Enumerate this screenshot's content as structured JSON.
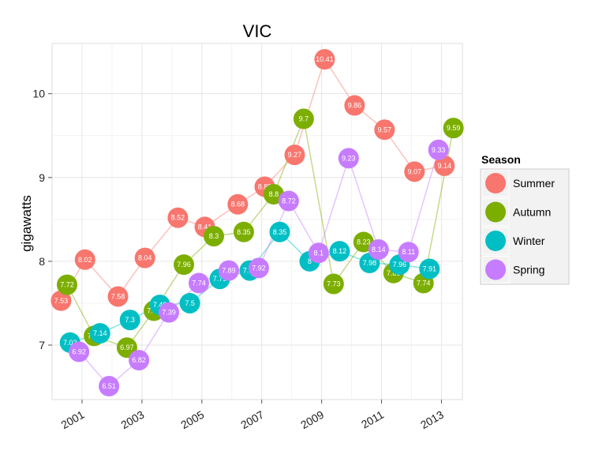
{
  "chart_data": {
    "type": "scatter",
    "title": "VIC",
    "xlabel": "",
    "ylabel": "gigawatts",
    "x_ticks": [
      "2001",
      "2003",
      "2005",
      "2007",
      "2009",
      "2011",
      "2013"
    ],
    "y_ticks": [
      "7",
      "8",
      "9",
      "10"
    ],
    "xlim": [
      2000.0,
      2013.7
    ],
    "ylim": [
      6.35,
      10.6
    ],
    "grid": true,
    "legend": {
      "title": "Season",
      "placement": "right"
    },
    "series": [
      {
        "name": "Summer",
        "color": "#F8766D",
        "points": [
          {
            "x": 2000.3,
            "y": 7.53,
            "label": "7.53"
          },
          {
            "x": 2001.1,
            "y": 8.02,
            "label": "8.02"
          },
          {
            "x": 2002.2,
            "y": 7.58,
            "label": "7.58"
          },
          {
            "x": 2003.1,
            "y": 8.04,
            "label": "8.04"
          },
          {
            "x": 2004.2,
            "y": 8.52,
            "label": "8.52"
          },
          {
            "x": 2005.1,
            "y": 8.41,
            "label": "8.41"
          },
          {
            "x": 2006.2,
            "y": 8.68,
            "label": "8.68"
          },
          {
            "x": 2007.1,
            "y": 8.89,
            "label": "8.89"
          },
          {
            "x": 2008.1,
            "y": 9.27,
            "label": "9.27"
          },
          {
            "x": 2009.1,
            "y": 10.41,
            "label": "10.41"
          },
          {
            "x": 2010.1,
            "y": 9.86,
            "label": "9.86"
          },
          {
            "x": 2011.1,
            "y": 9.57,
            "label": "9.57"
          },
          {
            "x": 2012.1,
            "y": 9.07,
            "label": "9.07"
          },
          {
            "x": 2013.1,
            "y": 9.14,
            "label": "9.14"
          }
        ]
      },
      {
        "name": "Autumn",
        "color": "#7CAE00",
        "points": [
          {
            "x": 2000.5,
            "y": 7.72,
            "label": "7.72"
          },
          {
            "x": 2001.4,
            "y": 7.11,
            "label": "7.11"
          },
          {
            "x": 2002.5,
            "y": 6.97,
            "label": "6.97"
          },
          {
            "x": 2003.4,
            "y": 7.41,
            "label": "7.41"
          },
          {
            "x": 2004.4,
            "y": 7.96,
            "label": "7.96"
          },
          {
            "x": 2005.4,
            "y": 8.3,
            "label": "8.3"
          },
          {
            "x": 2006.4,
            "y": 8.35,
            "label": "8.35"
          },
          {
            "x": 2007.4,
            "y": 8.8,
            "label": "8.8"
          },
          {
            "x": 2008.4,
            "y": 9.7,
            "label": "9.7"
          },
          {
            "x": 2009.4,
            "y": 7.73,
            "label": "7.73"
          },
          {
            "x": 2010.4,
            "y": 8.23,
            "label": "8.23"
          },
          {
            "x": 2011.4,
            "y": 7.86,
            "label": "7.86"
          },
          {
            "x": 2012.4,
            "y": 7.74,
            "label": "7.74"
          },
          {
            "x": 2013.4,
            "y": 9.59,
            "label": "9.59"
          }
        ]
      },
      {
        "name": "Winter",
        "color": "#00BFC4",
        "points": [
          {
            "x": 2000.6,
            "y": 7.03,
            "label": "7.03"
          },
          {
            "x": 2001.6,
            "y": 7.14,
            "label": "7.14"
          },
          {
            "x": 2002.6,
            "y": 7.3,
            "label": "7.3"
          },
          {
            "x": 2003.6,
            "y": 7.48,
            "label": "7.48"
          },
          {
            "x": 2004.6,
            "y": 7.5,
            "label": "7.5"
          },
          {
            "x": 2005.6,
            "y": 7.79,
            "label": "7.79"
          },
          {
            "x": 2006.6,
            "y": 7.89,
            "label": "7.89"
          },
          {
            "x": 2007.6,
            "y": 8.35,
            "label": "8.35"
          },
          {
            "x": 2008.6,
            "y": 8.0,
            "label": "8"
          },
          {
            "x": 2009.6,
            "y": 8.12,
            "label": "8.12"
          },
          {
            "x": 2010.6,
            "y": 7.98,
            "label": "7.98"
          },
          {
            "x": 2011.6,
            "y": 7.96,
            "label": "7.96"
          },
          {
            "x": 2012.6,
            "y": 7.91,
            "label": "7.91"
          }
        ]
      },
      {
        "name": "Spring",
        "color": "#C77CFF",
        "points": [
          {
            "x": 2000.9,
            "y": 6.92,
            "label": "6.92"
          },
          {
            "x": 2001.9,
            "y": 6.51,
            "label": "6.51"
          },
          {
            "x": 2002.9,
            "y": 6.82,
            "label": "6.82"
          },
          {
            "x": 2003.9,
            "y": 7.39,
            "label": "7.39"
          },
          {
            "x": 2004.9,
            "y": 7.74,
            "label": "7.74"
          },
          {
            "x": 2005.9,
            "y": 7.89,
            "label": "7.89"
          },
          {
            "x": 2006.9,
            "y": 7.92,
            "label": "7.92"
          },
          {
            "x": 2007.9,
            "y": 8.72,
            "label": "8.72"
          },
          {
            "x": 2008.9,
            "y": 8.1,
            "label": "8.1"
          },
          {
            "x": 2009.9,
            "y": 9.23,
            "label": "9.23"
          },
          {
            "x": 2010.9,
            "y": 8.14,
            "label": "8.14"
          },
          {
            "x": 2011.9,
            "y": 8.11,
            "label": "8.11"
          },
          {
            "x": 2012.9,
            "y": 9.33,
            "label": "9.33"
          }
        ]
      }
    ]
  }
}
